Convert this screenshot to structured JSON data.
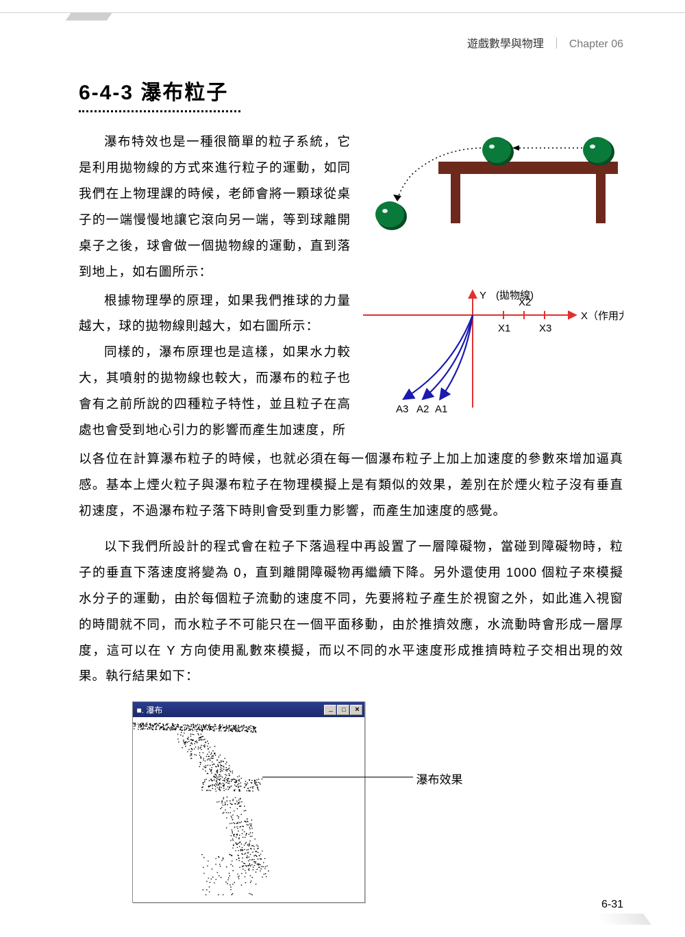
{
  "header": {
    "subject": "遊戲數學與物理",
    "chapter": "Chapter 06"
  },
  "section": {
    "number": "6-4-3",
    "title": "瀑布粒子"
  },
  "paragraphs": {
    "p1": "瀑布特效也是一種很簡單的粒子系統，它是利用拋物線的方式來進行粒子的運動，如同我們在上物理課的時候，老師會將一顆球從桌子的一端慢慢地讓它滾向另一端，等到球離開桌子之後，球會做一個拋物線的運動，直到落到地上，如右圖所示：",
    "p2": "根據物理學的原理，如果我們推球的力量越大，球的拋物線則越大，如右圖所示：",
    "p3a": "同樣的，瀑布原理也是這樣，如果水力較大，其噴射的拋物線也較大，而瀑布的粒子也會有之前所說的四種粒子特性，並且粒子在高處也會受到地心引力的影響而產生加速度，所",
    "p3b": "以各位在計算瀑布粒子的時候，也就必須在每一個瀑布粒子上加上加速度的參數來增加逼真感。基本上煙火粒子與瀑布粒子在物理模擬上是有類似的效果，差別在於煙火粒子沒有垂直初速度，不過瀑布粒子落下時則會受到重力影響，而產生加速度的感覺。",
    "p4": "以下我們所設計的程式會在粒子下落過程中再設置了一層障礙物，當碰到障礙物時，粒子的垂直下落速度將變為 0，直到離開障礙物再繼續下降。另外還使用 1000 個粒子來模擬水分子的運動，由於每個粒子流動的速度不同，先要將粒子產生於視窗之外，如此進入視窗的時間就不同，而水粒子不可能只在一個平面移動，由於推擠效應，水流動時會形成一層厚度，這可以在 Y 方向使用亂數來模擬，而以不同的水平速度形成推擠時粒子交相出現的效果。執行結果如下："
  },
  "figure1": {
    "table_color": "#6d2a1c",
    "ball_fill": "#0a7a3a",
    "ball_shadow": "#054d24"
  },
  "figure2": {
    "axis_label_x": "X（作用力",
    "axis_label_y": "Y",
    "curve_label": "(拋物線)",
    "ticks": [
      "X1",
      "X2",
      "X3"
    ],
    "arrows": [
      "A3",
      "A2",
      "A1"
    ],
    "axis_color": "#e03030",
    "curve_color": "#1a1ab0"
  },
  "window": {
    "title": "瀑布",
    "annotation": "瀑布效果"
  },
  "page_number": "6-31"
}
